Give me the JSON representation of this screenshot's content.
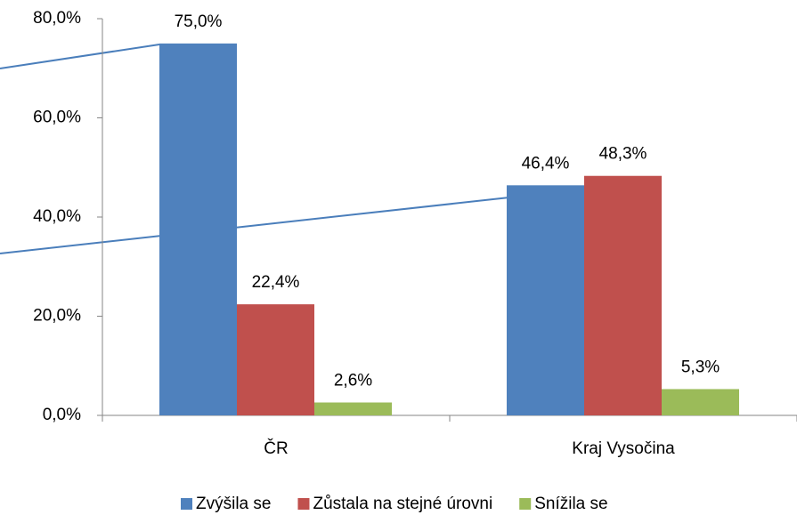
{
  "chart_data": {
    "type": "bar",
    "categories": [
      "ČR",
      "Kraj Vysočina"
    ],
    "series": [
      {
        "name": "Zvýšila se",
        "color": "#4f81bd",
        "values": [
          75.0,
          46.4
        ],
        "value_labels": [
          "75,0%",
          "46,4%"
        ]
      },
      {
        "name": "Zůstala na stejné úrovni",
        "color": "#c0504d",
        "values": [
          22.4,
          48.3
        ],
        "value_labels": [
          "22,4%",
          "48,3%"
        ]
      },
      {
        "name": "Snížila se",
        "color": "#9bbb59",
        "values": [
          2.6,
          5.3
        ],
        "value_labels": [
          "2,6%",
          "5,3%"
        ]
      }
    ],
    "ylim": [
      0,
      80
    ],
    "yticks": [
      {
        "value": 0,
        "label": "0,0%"
      },
      {
        "value": 20,
        "label": "20,0%"
      },
      {
        "value": 40,
        "label": "40,0%"
      },
      {
        "value": 60,
        "label": "60,0%"
      },
      {
        "value": 80,
        "label": "80,0%"
      }
    ],
    "legend": "bottom"
  }
}
